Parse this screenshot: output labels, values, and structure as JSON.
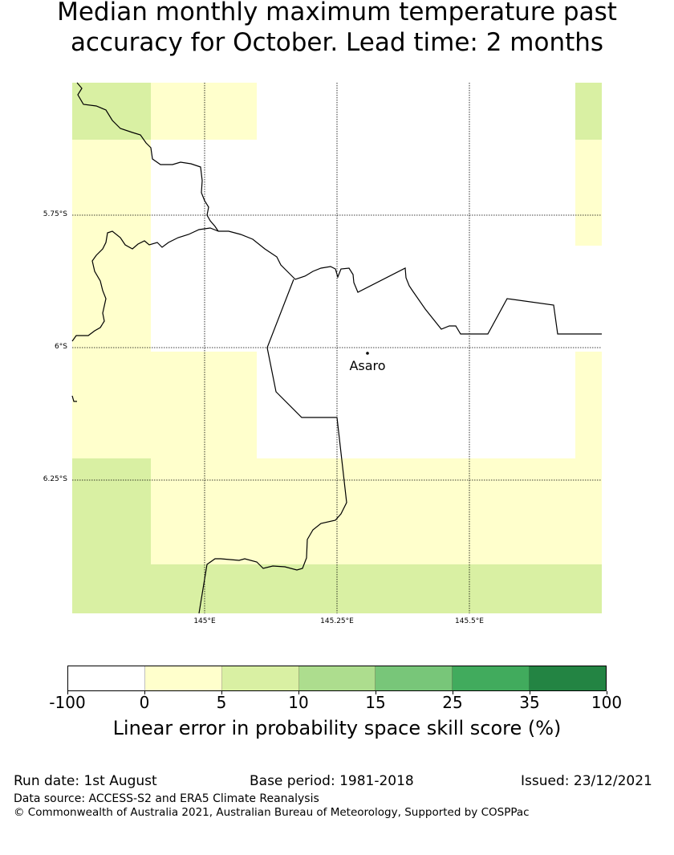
{
  "title": {
    "line1": "Median monthly maximum temperature past",
    "line2": "accuracy for October. Lead time: 2 months"
  },
  "map": {
    "lat_labels": [
      "5.75°S",
      "6°S",
      "6.25°S"
    ],
    "lon_labels": [
      "145°E",
      "145.25°E",
      "145.5°E"
    ],
    "place": {
      "name": "Asaro"
    },
    "colors": {
      "very_light_yellow": "#ffffcc",
      "light_green": "#d9f0a3",
      "border": "#000000"
    },
    "skill_grid_legend_classes": [
      "0-5",
      "5-10"
    ]
  },
  "colorbar": {
    "colors": [
      "#ffffff",
      "#ffffcc",
      "#d9f0a3",
      "#addd8e",
      "#78c679",
      "#41ab5d",
      "#238443"
    ],
    "ticks": [
      "-100",
      "0",
      "5",
      "10",
      "15",
      "25",
      "35",
      "100"
    ],
    "label": "Linear error in probability space skill score (%)"
  },
  "footer": {
    "run_date": "Run date: 1st August",
    "base_period": "Base period: 1981-2018",
    "issued": "Issued: 23/12/2021",
    "data_source": "Data source: ACCESS-S2 and ERA5 Climate Reanalysis",
    "copyright": "© Commonwealth of Australia 2021, Australian Bureau of Meteorology, Supported by COSPPac"
  }
}
